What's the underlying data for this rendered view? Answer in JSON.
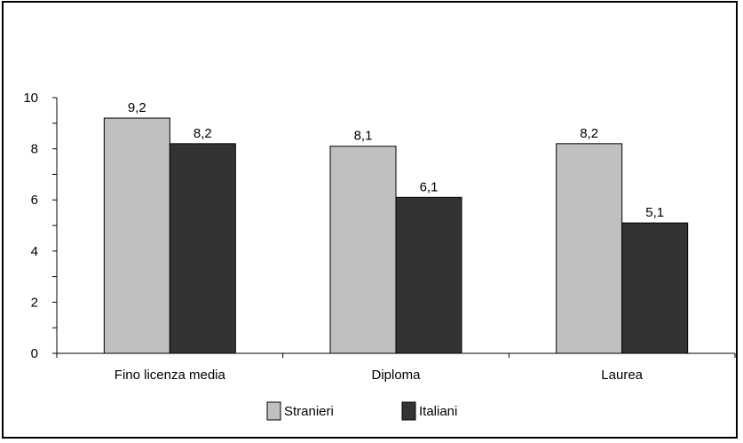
{
  "chart_data": {
    "type": "bar",
    "categories": [
      "Fino licenza media",
      "Diploma",
      "Laurea"
    ],
    "series": [
      {
        "name": "Stranieri",
        "values": [
          9.2,
          8.1,
          8.2
        ],
        "color": "#c0c0c0",
        "labels": [
          "9,2",
          "8,1",
          "8,2"
        ]
      },
      {
        "name": "Italiani",
        "values": [
          8.2,
          6.1,
          5.1
        ],
        "color": "#333333",
        "labels": [
          "8,2",
          "6,1",
          "5,1"
        ]
      }
    ],
    "ylim": [
      0,
      10
    ],
    "yticks": [
      "0",
      "2",
      "4",
      "6",
      "8",
      "10"
    ],
    "xlabel": "",
    "ylabel": "",
    "title": "",
    "grid": false,
    "legend": "bottom"
  }
}
